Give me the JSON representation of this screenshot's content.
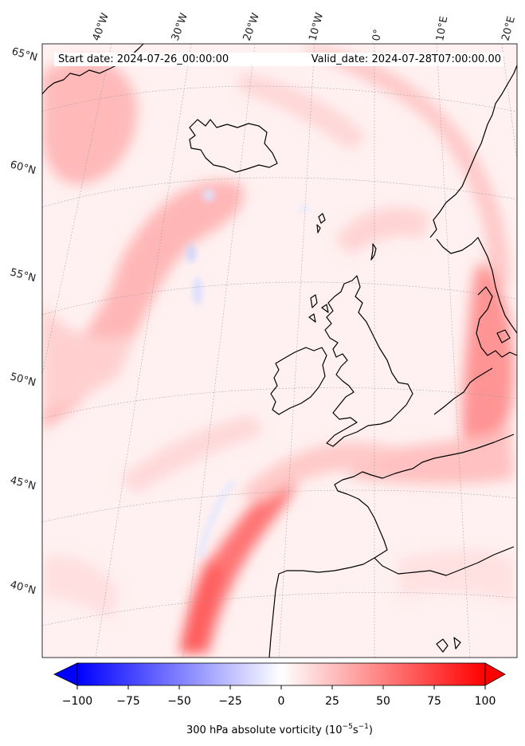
{
  "map": {
    "start_date_label": "Start date: 2024-07-26_00:00:00",
    "valid_date_label": "Valid_date: 2024-07-28T07:00:00.00",
    "lon_labels": [
      "40°W",
      "30°W",
      "20°W",
      "10°W",
      "0°",
      "10°E",
      "20°E"
    ],
    "lat_labels": [
      "65°N",
      "60°N",
      "55°N",
      "50°N",
      "45°N",
      "40°N"
    ],
    "field": "300 hPa absolute vorticity",
    "coastline_color": "#000000",
    "gridline_color": "#999999"
  },
  "colorbar": {
    "label_text": "300 hPa absolute vorticity (10",
    "label_exp1": "−5",
    "label_mid": "s",
    "label_exp2": "−1",
    "label_close": ")",
    "ticks": [
      "−100",
      "−75",
      "−50",
      "−25",
      "0",
      "25",
      "50",
      "75",
      "100"
    ],
    "cmap": "bwr",
    "min_color": "#0000ff",
    "mid_color": "#ffffff",
    "max_color": "#ff0000",
    "range": [
      -100,
      100
    ]
  }
}
